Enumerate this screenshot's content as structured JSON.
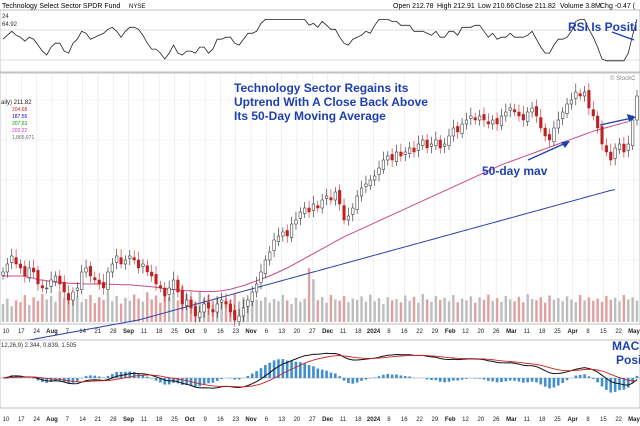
{
  "chart_data": {
    "type": "candlestick",
    "header": {
      "title": "Technology Select Sector SPDR Fund",
      "exchange": "NYSE",
      "open": "Open 212.78",
      "high": "High 212.91",
      "low": "Low 210.66",
      "close": "Close 211.82",
      "volume": "Volume 3.8M",
      "change": "Chg -0.47 (",
      "watermark": "© StockC"
    },
    "rsi_panel": {
      "value_label": "64.92",
      "top_label": "24",
      "annotation": "RSI Is Positi"
    },
    "price_panel": {
      "legend": [
        "aily) 211.82",
        "204.68",
        "187.55",
        "207.63",
        "202.22",
        "1,865,671"
      ],
      "legend_colors": [
        "#222222",
        "#cc2222",
        "#0000cc",
        "#009900",
        "#cc33cc",
        "#666666"
      ],
      "annotation_lines": [
        "Technology Sector Regains its",
        "Uptrend With A Close Back Above",
        "Its 50-Day Moving Average"
      ],
      "mav_label": "50-day mav",
      "y_range": [
        155,
        215
      ],
      "close": [
        167,
        169,
        171,
        169,
        168,
        166,
        168,
        167,
        164,
        163,
        163,
        165,
        166,
        164,
        162,
        160,
        162,
        163,
        167,
        168,
        166,
        165,
        164,
        163,
        167,
        169,
        171,
        169,
        170,
        171,
        170,
        168,
        169,
        167,
        166,
        164,
        163,
        161,
        163,
        165,
        162,
        159,
        160,
        158,
        156,
        157,
        159,
        158,
        157,
        159,
        160,
        159,
        157,
        155,
        156,
        158,
        160,
        162,
        164,
        167,
        170,
        172,
        175,
        176,
        177,
        176,
        179,
        180,
        182,
        183,
        182,
        184,
        183,
        185,
        186,
        185,
        187,
        184,
        180,
        181,
        183,
        186,
        188,
        189,
        190,
        191,
        193,
        195,
        196,
        195,
        197,
        196,
        197,
        198,
        197,
        199,
        200,
        198,
        199,
        200,
        198,
        199,
        201,
        203,
        202,
        204,
        205,
        206,
        205,
        206,
        205,
        204,
        205,
        204,
        206,
        207,
        208,
        207,
        206,
        205,
        207,
        208,
        206,
        203,
        201,
        200,
        203,
        205,
        207,
        209,
        210,
        212,
        211,
        212,
        208,
        206,
        203,
        199,
        197,
        195,
        198,
        199,
        197,
        199,
        205,
        211
      ],
      "ma50": [
        166,
        166,
        166,
        166,
        166,
        166,
        165.5,
        165.5,
        165,
        165,
        164.8,
        164.6,
        164.5,
        164.4,
        164.3,
        164.2,
        164.2,
        164.1,
        164.1,
        164,
        164,
        164,
        164,
        164,
        164,
        163.9,
        163.9,
        163.8,
        163.8,
        163.8,
        163.7,
        163.6,
        163.5,
        163.4,
        163.3,
        163.2,
        163,
        162.8,
        162.7,
        162.6,
        162.5,
        162.4,
        162.3,
        162.3,
        162.2,
        162.2,
        162.1,
        162.1,
        162.1,
        162.2,
        162.3,
        162.5,
        162.7,
        163,
        163.3,
        163.6,
        164,
        164.4,
        164.8,
        165.2,
        165.6,
        166,
        166.5,
        167,
        167.5,
        168,
        168.6,
        169.2,
        169.8,
        170.4,
        171,
        171.6,
        172.2,
        172.8,
        173.4,
        174,
        174.6,
        175.2,
        175.8,
        176.3,
        176.8,
        177.3,
        177.8,
        178.3,
        178.8,
        179.3,
        179.8,
        180.3,
        180.8,
        181.3,
        181.8,
        182.3,
        182.8,
        183.3,
        183.8,
        184.3,
        184.8,
        185.3,
        185.8,
        186.3,
        186.8,
        187.3,
        187.8,
        188.3,
        188.8,
        189.3,
        189.8,
        190.3,
        190.8,
        191.3,
        191.8,
        192.3,
        192.8,
        193.3,
        193.8,
        194.2,
        194.6,
        195,
        195.4,
        195.8,
        196.2,
        196.6,
        197,
        197.4,
        197.8,
        198.2,
        198.6,
        199,
        199.4,
        199.8,
        200.2,
        200.6,
        201,
        201.4,
        201.8,
        202.2,
        202.5,
        202.8,
        203.1,
        203.4,
        203.7,
        204,
        204.3,
        204.6
      ],
      "ma200": [
        148.8,
        149,
        149.2,
        149.4,
        149.6,
        149.8,
        150,
        150.2,
        150.4,
        150.6,
        150.8,
        151,
        151.2,
        151.4,
        151.6,
        151.8,
        152,
        152.2,
        152.4,
        152.6,
        152.8,
        153,
        153.2,
        153.4,
        153.6,
        153.8,
        154,
        154.2,
        154.4,
        154.6,
        154.8,
        155,
        155.3,
        155.6,
        155.9,
        156.2,
        156.5,
        156.8,
        157.1,
        157.4,
        157.7,
        158,
        158.3,
        158.6,
        158.9,
        159.2,
        159.5,
        159.8,
        160.1,
        160.4,
        160.7,
        161,
        161.3,
        161.6,
        161.9,
        162.2,
        162.5,
        162.8,
        163.1,
        163.4,
        163.7,
        164,
        164.3,
        164.6,
        164.9,
        165.2,
        165.5,
        165.8,
        166.1,
        166.4,
        166.7,
        167,
        167.3,
        167.6,
        167.9,
        168.2,
        168.5,
        168.8,
        169.1,
        169.4,
        169.7,
        170,
        170.3,
        170.6,
        170.9,
        171.2,
        171.5,
        171.8,
        172.1,
        172.4,
        172.7,
        173,
        173.3,
        173.6,
        173.9,
        174.2,
        174.5,
        174.8,
        175.1,
        175.4,
        175.7,
        176,
        176.3,
        176.6,
        176.9,
        177.2,
        177.5,
        177.8,
        178.1,
        178.4,
        178.7,
        179,
        179.3,
        179.6,
        179.9,
        180.2,
        180.5,
        180.8,
        181.1,
        181.4,
        181.7,
        182,
        182.3,
        182.6,
        182.9,
        183.2,
        183.5,
        183.8,
        184.1,
        184.4,
        184.7,
        185,
        185.3,
        185.6,
        185.9,
        186.2,
        186.5,
        186.8,
        187.1,
        187.4,
        187.55
      ],
      "volume": [
        40,
        52,
        35,
        48,
        44,
        60,
        38,
        55,
        47,
        62,
        50,
        58,
        45,
        70,
        53,
        65,
        48,
        57,
        44,
        51,
        60,
        42,
        55,
        49,
        63,
        46,
        58,
        41,
        54,
        47,
        61,
        52,
        45,
        66,
        50,
        59,
        43,
        72,
        55,
        64,
        48,
        80,
        62,
        57,
        45,
        69,
        52,
        60,
        47,
        58,
        44,
        53,
        49,
        62,
        46,
        55,
        42,
        58,
        50,
        47,
        55,
        43,
        51,
        46,
        60,
        48,
        40,
        54,
        45,
        52,
        120,
        95,
        48,
        56,
        43,
        60,
        50,
        47,
        58,
        44,
        52,
        49,
        57,
        45,
        61,
        46,
        53,
        40,
        55,
        48,
        51,
        44,
        59,
        47,
        56,
        43,
        62,
        50,
        45,
        58,
        49,
        54,
        46,
        60,
        44,
        52,
        48,
        57,
        43,
        55,
        49,
        61,
        47,
        53,
        45,
        58,
        50,
        46,
        56,
        44,
        62,
        51,
        48,
        55,
        43,
        59,
        49,
        53,
        46,
        57,
        50,
        44,
        60,
        48,
        55,
        47,
        52,
        45,
        58,
        49,
        54,
        46,
        60,
        50,
        55,
        47
      ]
    },
    "macd_panel": {
      "legend": "12,26,9) 2.344, 0.839, 1.505",
      "annotation_lines": [
        "MAC",
        "Posi"
      ]
    },
    "x_labels": [
      "10",
      "17",
      "24",
      "Aug",
      "7",
      "14",
      "21",
      "28",
      "Sep",
      "11",
      "18",
      "25",
      "Oct",
      "9",
      "16",
      "23",
      "Nov",
      "6",
      "13",
      "20",
      "27",
      "Dec",
      "11",
      "18",
      "2024",
      "8",
      "16",
      "22",
      "29",
      "Feb",
      "12",
      "20",
      "26",
      "Mar",
      "11",
      "18",
      "25",
      "Apr",
      "8",
      "15",
      "22",
      "May"
    ]
  }
}
